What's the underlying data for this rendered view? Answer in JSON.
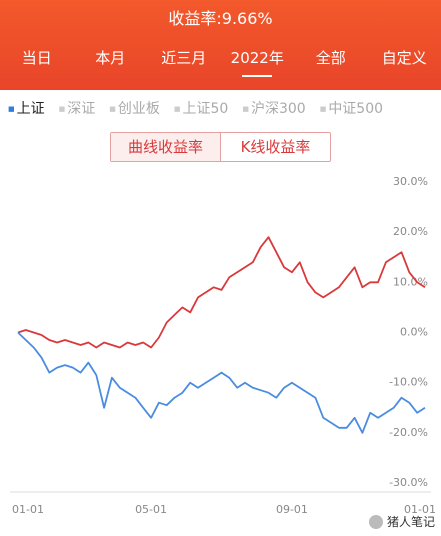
{
  "header": {
    "title": "收益率:9.66%",
    "tabs": [
      "当日",
      "本月",
      "近三月",
      "2022年",
      "全部",
      "自定义"
    ],
    "active_tab": 3
  },
  "indices": {
    "items": [
      "上证",
      "深证",
      "创业板",
      "上证50",
      "沪深300",
      "中证500"
    ],
    "active": 0
  },
  "toggle": {
    "items": [
      "曲线收益率",
      "K线收益率"
    ],
    "active": 0
  },
  "chart_data": {
    "type": "line",
    "categories": [
      "01-01",
      null,
      null,
      null,
      null,
      null,
      null,
      null,
      null,
      null,
      null,
      null,
      null,
      null,
      null,
      null,
      null,
      "05-01",
      null,
      null,
      null,
      null,
      null,
      null,
      null,
      null,
      null,
      null,
      null,
      null,
      null,
      null,
      null,
      null,
      null,
      "09-01",
      null,
      null,
      null,
      null,
      null,
      null,
      null,
      null,
      null,
      null,
      null,
      null,
      null,
      null,
      null,
      null,
      "01-01"
    ],
    "series": [
      {
        "color": "#d9393b",
        "values": [
          0,
          0.5,
          0,
          -0.5,
          -1.5,
          -2,
          -1.5,
          -2,
          -2.5,
          -2,
          -3,
          -2,
          -2.5,
          -3,
          -2,
          -2.5,
          -2,
          -3,
          -1,
          2,
          3.5,
          5,
          4,
          7,
          8,
          9,
          8.5,
          11,
          12,
          13,
          14,
          17,
          19,
          16,
          13,
          12,
          14,
          10,
          8,
          7,
          8,
          9,
          11,
          13,
          9,
          10,
          10,
          14,
          15,
          16,
          12,
          10,
          9
        ]
      },
      {
        "color": "#4a8ce0",
        "values": [
          0,
          -1.5,
          -3,
          -5,
          -8,
          -7,
          -6.5,
          -7,
          -8,
          -6,
          -8.5,
          -15,
          -9,
          -11,
          -12,
          -13,
          -15,
          -17,
          -14,
          -14.5,
          -13,
          -12,
          -10,
          -11,
          -10,
          -9,
          -8,
          -9,
          -11,
          -10,
          -11,
          -11.5,
          -12,
          -13,
          -11,
          -10,
          -11,
          -12,
          -13,
          -17,
          -18,
          -19,
          -19,
          -17,
          -20,
          -16,
          -17,
          -16,
          -15,
          -13,
          -14,
          -16,
          -15
        ]
      }
    ],
    "ylim": [
      -30,
      30
    ],
    "yticks": [
      {
        "value": 30,
        "label": "30.0%"
      },
      {
        "value": 20,
        "label": "20.0%"
      },
      {
        "value": 10,
        "label": "10.0%"
      },
      {
        "value": 0,
        "label": "0.0%"
      },
      {
        "value": -10,
        "label": "-10.0%"
      },
      {
        "value": -20,
        "label": "-20.0%"
      },
      {
        "value": -30,
        "label": "-30.0%"
      }
    ],
    "grid": false
  },
  "watermark": "猪人笔记"
}
